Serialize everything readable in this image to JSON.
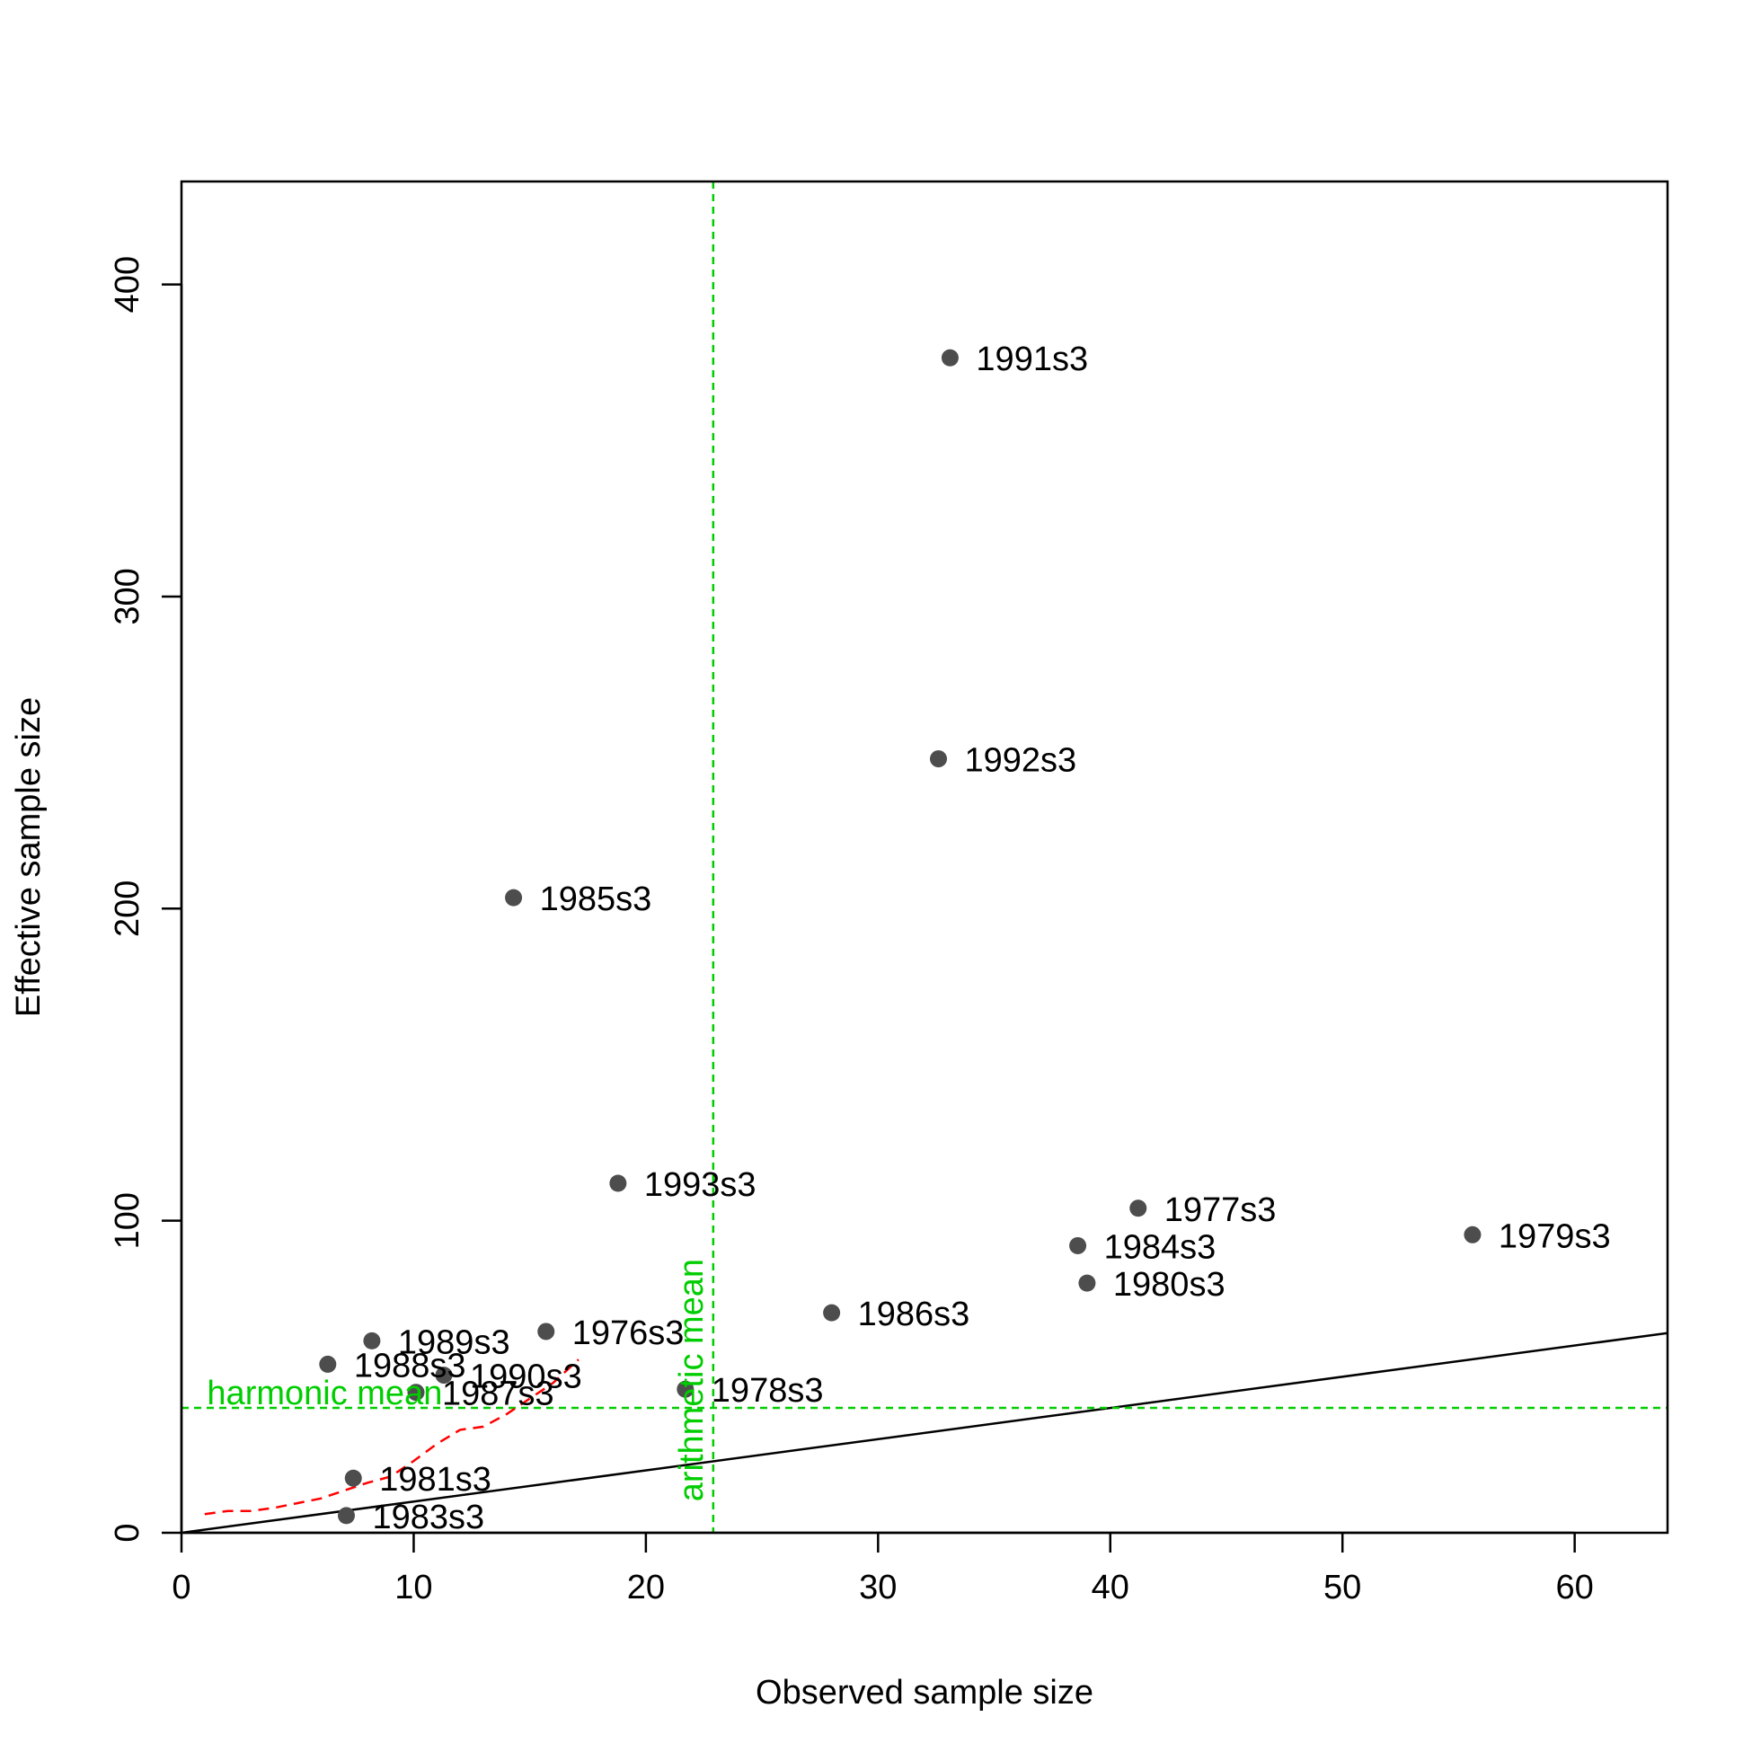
{
  "chart_data": {
    "type": "scatter",
    "title": "",
    "xlabel": "Observed sample size",
    "ylabel": "Effective sample size",
    "xlim": [
      0,
      64
    ],
    "ylim": [
      0,
      433
    ],
    "xticks": [
      0,
      10,
      20,
      30,
      40,
      50,
      60
    ],
    "yticks": [
      0,
      100,
      200,
      300,
      400
    ],
    "grid": false,
    "points": [
      {
        "label": "1976s3",
        "x": 15.7,
        "y": 64.5
      },
      {
        "label": "1977s3",
        "x": 41.2,
        "y": 104
      },
      {
        "label": "1978s3",
        "x": 21.7,
        "y": 46
      },
      {
        "label": "1979s3",
        "x": 55.6,
        "y": 95.5
      },
      {
        "label": "1980s3",
        "x": 39.0,
        "y": 80
      },
      {
        "label": "1981s3",
        "x": 7.4,
        "y": 17.5
      },
      {
        "label": "1983s3",
        "x": 7.1,
        "y": 5.5
      },
      {
        "label": "1984s3",
        "x": 38.6,
        "y": 92
      },
      {
        "label": "1985s3",
        "x": 14.3,
        "y": 203.5
      },
      {
        "label": "1986s3",
        "x": 28.0,
        "y": 70.5
      },
      {
        "label": "1987s3",
        "x": 10.1,
        "y": 45
      },
      {
        "label": "1988s3",
        "x": 6.3,
        "y": 54
      },
      {
        "label": "1989s3",
        "x": 8.2,
        "y": 61.5
      },
      {
        "label": "1990s3",
        "x": 11.3,
        "y": 50.5
      },
      {
        "label": "1991s3",
        "x": 33.1,
        "y": 376.5
      },
      {
        "label": "1992s3",
        "x": 32.6,
        "y": 248
      },
      {
        "label": "1993s3",
        "x": 18.8,
        "y": 112
      }
    ],
    "one_to_one_line": {
      "x": [
        0,
        64
      ],
      "y": [
        0,
        64
      ]
    },
    "smoother": {
      "color": "#ff0000",
      "x": [
        1,
        2,
        3,
        4,
        5,
        6,
        7,
        8,
        9,
        10,
        11,
        12,
        13,
        14,
        15,
        16,
        17.1
      ],
      "y": [
        6,
        7,
        7,
        8,
        9.5,
        11,
        13.5,
        16,
        18,
        23,
        28.5,
        33,
        34,
        38,
        43,
        48,
        55.5
      ]
    },
    "harmonic_mean": {
      "label": "harmonic mean",
      "value": 40,
      "color": "#00cd00"
    },
    "arithmetic_mean": {
      "label": "arithmetic mean",
      "value": 22.9,
      "color": "#00cd00"
    },
    "point_color": "#4d4d4d"
  }
}
